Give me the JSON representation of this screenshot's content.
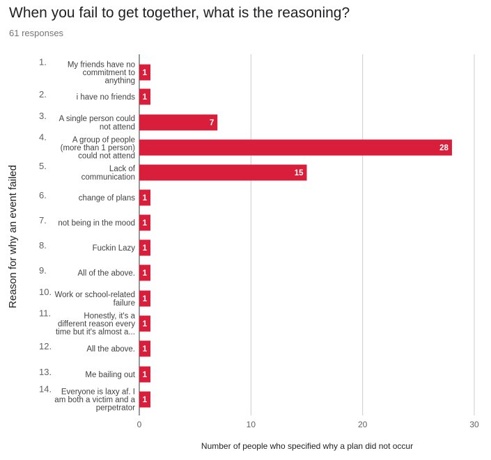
{
  "header": {
    "title": "When you fail to get together, what is the reasoning?",
    "responses": "61 responses"
  },
  "chart_data": {
    "type": "bar",
    "orientation": "horizontal",
    "xlabel": "Number of people who specified why a plan did not occur",
    "ylabel": "Reason for why an event failed",
    "xlim": [
      0,
      30
    ],
    "xticks": [
      0,
      10,
      20,
      30
    ],
    "grid": true,
    "bar_color": "#d81e3a",
    "numbers": [
      "1.",
      "2.",
      "3.",
      "4.",
      "5.",
      "6.",
      "7.",
      "8.",
      "9.",
      "10.",
      "11.",
      "12.",
      "13.",
      "14."
    ],
    "categories": [
      [
        "My friends have no",
        "commitment to",
        "anything"
      ],
      [
        "i have no friends"
      ],
      [
        "A single person could",
        "not attend"
      ],
      [
        "A group of people",
        "(more than 1 person)",
        "could not attend"
      ],
      [
        "Lack of",
        "communication"
      ],
      [
        "change of plans"
      ],
      [
        "not being in the mood"
      ],
      [
        "Fuckin Lazy"
      ],
      [
        "All of the above."
      ],
      [
        "Work or school-related",
        "failure"
      ],
      [
        "Honestly, it's a",
        "different reason every",
        "time but it's almost a..."
      ],
      [
        "All the above."
      ],
      [
        "Me bailing out"
      ],
      [
        "Everyone is laxy af. I",
        "am both a victim and a",
        "perpetrator"
      ]
    ],
    "values": [
      1,
      1,
      7,
      28,
      15,
      1,
      1,
      1,
      1,
      1,
      1,
      1,
      1,
      1
    ]
  }
}
